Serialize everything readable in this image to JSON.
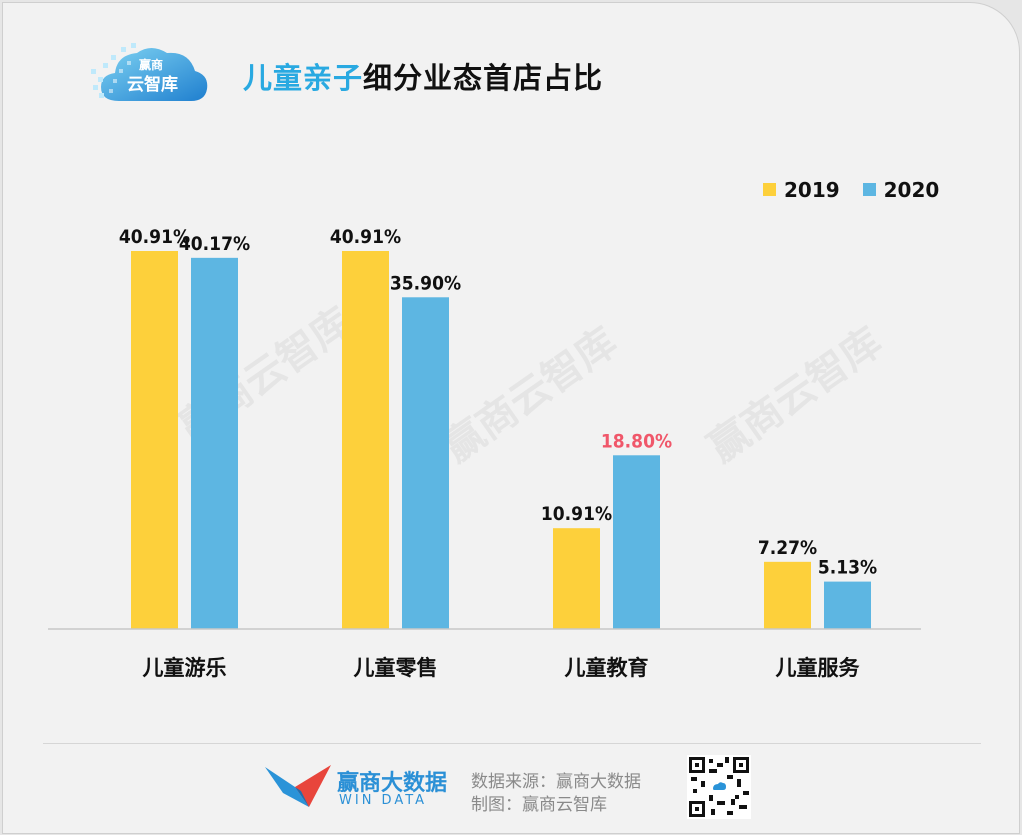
{
  "logo": {
    "top_text": "赢商",
    "bottom_text": "云智库"
  },
  "title": {
    "highlight": "儿童亲子",
    "rest": "细分业态首店占比"
  },
  "colors": {
    "series_2019": "#fdd03b",
    "series_2020": "#5db6e2",
    "highlight_label": "#f0576a",
    "title_accent": "#29a9e1"
  },
  "legend": [
    {
      "label": "2019",
      "color": "#fdd03b"
    },
    {
      "label": "2020",
      "color": "#5db6e2"
    }
  ],
  "chart_data": {
    "type": "bar",
    "categories": [
      "儿童游乐",
      "儿童零售",
      "儿童教育",
      "儿童服务"
    ],
    "series": [
      {
        "name": "2019",
        "values": [
          40.91,
          40.91,
          10.91,
          7.27
        ],
        "labels": [
          "40.91%",
          "40.91%",
          "10.91%",
          "7.27%"
        ]
      },
      {
        "name": "2020",
        "values": [
          40.17,
          35.9,
          18.8,
          5.13
        ],
        "labels": [
          "40.17%",
          "35.90%",
          "18.80%",
          "5.13%"
        ]
      }
    ],
    "highlighted_labels": [
      {
        "series": "2020",
        "category": "儿童教育"
      }
    ],
    "title": "儿童亲子细分业态首店占比",
    "xlabel": "",
    "ylabel": "",
    "ylim": [
      0,
      40.91
    ],
    "grid": false,
    "legend_position": "top-right"
  },
  "watermark": "赢商云智库",
  "footer": {
    "brand_cn": "赢商大数据",
    "brand_en": "WIN DATA",
    "source_line": "数据来源：赢商大数据",
    "maker_line": "制图：赢商云智库"
  }
}
